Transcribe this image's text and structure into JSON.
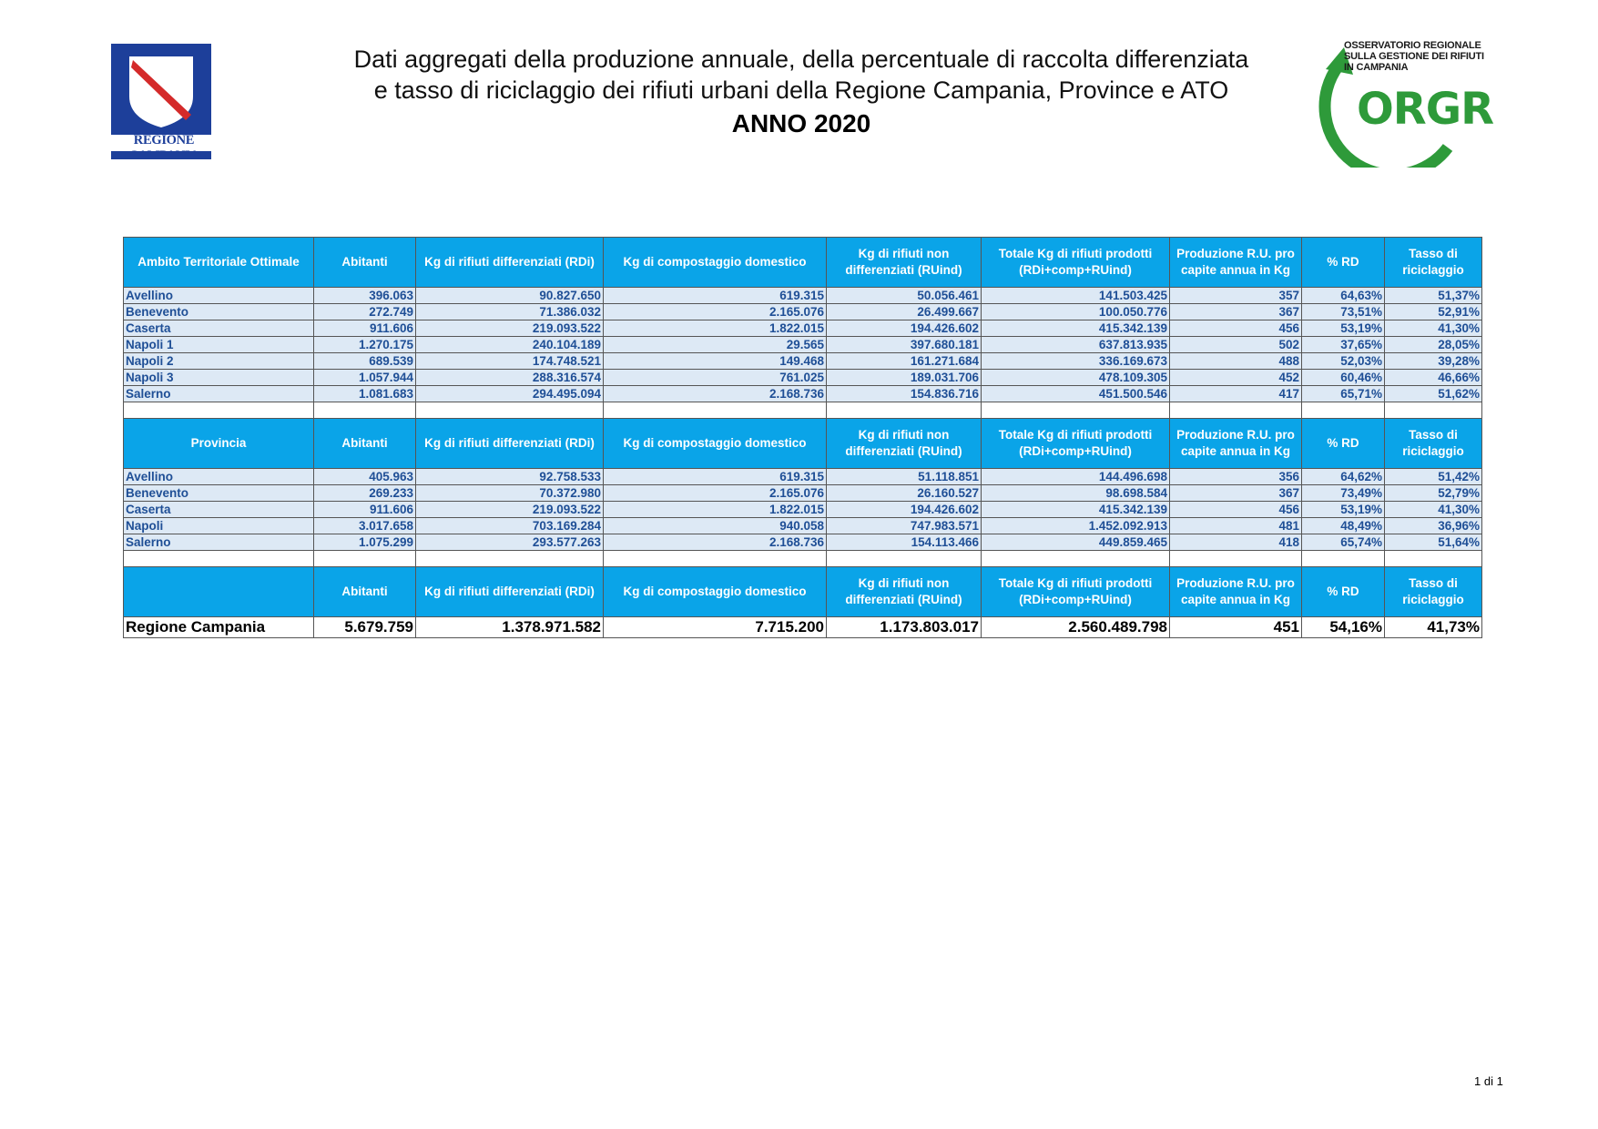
{
  "logo_left": {
    "name": "REGIONE CAMPANIA",
    "icon": "campania-coat-of-arms"
  },
  "logo_right": {
    "line1": "OSSERVATORIO REGIONALE",
    "line2": "SULLA GESTIONE DEI RIFIUTI",
    "line3": "IN CAMPANIA",
    "mark": "ORGR",
    "icon": "orgr-recycle-arrow",
    "color": "#2e9a3a"
  },
  "title": {
    "line1": "Dati aggregati della produzione annuale, della percentuale di raccolta differenziata",
    "line2": "e tasso di riciclaggio dei rifiuti urbani della Regione Campania, Province e ATO",
    "line3": "ANNO 2020"
  },
  "colors": {
    "header_bg": "#0aa4e8",
    "row_bg": "#dde9f5",
    "row_text": "#1f4f96"
  },
  "headers_common": [
    "Abitanti",
    "Kg di rifiuti differenziati (RDi)",
    "Kg di compostaggio domestico",
    "Kg di rifiuti non differenziati (RUind)",
    "Totale Kg di rifiuti prodotti (RDi+comp+RUind)",
    "Produzione R.U. pro capite annua in Kg",
    "% RD",
    "Tasso di riciclaggio"
  ],
  "ato": {
    "first_header": "Ambito Territoriale Ottimale",
    "rows": [
      [
        "Avellino",
        "396.063",
        "90.827.650",
        "619.315",
        "50.056.461",
        "141.503.425",
        "357",
        "64,63%",
        "51,37%"
      ],
      [
        "Benevento",
        "272.749",
        "71.386.032",
        "2.165.076",
        "26.499.667",
        "100.050.776",
        "367",
        "73,51%",
        "52,91%"
      ],
      [
        "Caserta",
        "911.606",
        "219.093.522",
        "1.822.015",
        "194.426.602",
        "415.342.139",
        "456",
        "53,19%",
        "41,30%"
      ],
      [
        "Napoli 1",
        "1.270.175",
        "240.104.189",
        "29.565",
        "397.680.181",
        "637.813.935",
        "502",
        "37,65%",
        "28,05%"
      ],
      [
        "Napoli 2",
        "689.539",
        "174.748.521",
        "149.468",
        "161.271.684",
        "336.169.673",
        "488",
        "52,03%",
        "39,28%"
      ],
      [
        "Napoli 3",
        "1.057.944",
        "288.316.574",
        "761.025",
        "189.031.706",
        "478.109.305",
        "452",
        "60,46%",
        "46,66%"
      ],
      [
        "Salerno",
        "1.081.683",
        "294.495.094",
        "2.168.736",
        "154.836.716",
        "451.500.546",
        "417",
        "65,71%",
        "51,62%"
      ]
    ]
  },
  "province": {
    "first_header": "Provincia",
    "rows": [
      [
        "Avellino",
        "405.963",
        "92.758.533",
        "619.315",
        "51.118.851",
        "144.496.698",
        "356",
        "64,62%",
        "51,42%"
      ],
      [
        "Benevento",
        "269.233",
        "70.372.980",
        "2.165.076",
        "26.160.527",
        "98.698.584",
        "367",
        "73,49%",
        "52,79%"
      ],
      [
        "Caserta",
        "911.606",
        "219.093.522",
        "1.822.015",
        "194.426.602",
        "415.342.139",
        "456",
        "53,19%",
        "41,30%"
      ],
      [
        "Napoli",
        "3.017.658",
        "703.169.284",
        "940.058",
        "747.983.571",
        "1.452.092.913",
        "481",
        "48,49%",
        "36,96%"
      ],
      [
        "Salerno",
        "1.075.299",
        "293.577.263",
        "2.168.736",
        "154.113.466",
        "449.859.465",
        "418",
        "65,74%",
        "51,64%"
      ]
    ]
  },
  "region": {
    "first_header": "",
    "row": [
      "Regione Campania",
      "5.679.759",
      "1.378.971.582",
      "7.715.200",
      "1.173.803.017",
      "2.560.489.798",
      "451",
      "54,16%",
      "41,73%"
    ]
  },
  "footer": {
    "page": "1 di 1"
  }
}
